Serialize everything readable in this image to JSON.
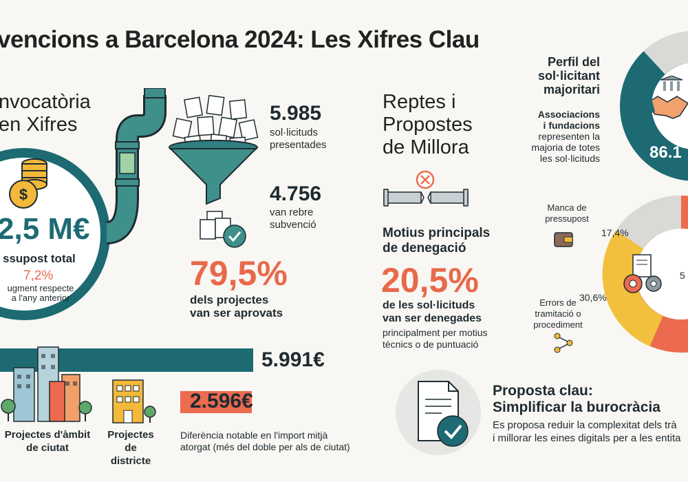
{
  "title": "vencions a Barcelona 2024: Les Xifres Clau",
  "convocatoria": {
    "heading_line1": "nvocatòria",
    "heading_line2": "en Xifres",
    "budget": "2,5 M€",
    "budget_label": "ssupost total",
    "increase_pct": "7,2%",
    "increase_label_line1": "ugment respecte",
    "increase_label_line2": "a l'any anterior"
  },
  "funnel": {
    "submitted_value": "5.985",
    "submitted_label_line1": "sol·licituds",
    "submitted_label_line2": "presentades",
    "granted_value": "4.756",
    "granted_label_line1": "van rebre",
    "granted_label_line2": "subvenció",
    "approved_pct": "79,5%",
    "approved_label_line1": "dels projectes",
    "approved_label_line2": "van ser aprovats"
  },
  "amounts": {
    "city_value": "5.991€",
    "district_value": "2.596€",
    "city_label_line1": "Projectes d'àmbit",
    "city_label_line2": "de ciutat",
    "district_label_line1": "Projectes",
    "district_label_line2": "de districte",
    "note_line1": "Diferència notable en l'import mitjà",
    "note_line2": "atorgat (més del doble per als de ciutat)",
    "city_bar_color": "#1d6a73",
    "district_bar_color": "#ec6b4e"
  },
  "reptes": {
    "heading_line1": "Reptes i",
    "heading_line2": "Propostes",
    "heading_line3": "de Millora",
    "reasons_line1": "Motius principals",
    "reasons_line2": "de denegació",
    "denied_pct": "20,5%",
    "denied_label_line1": "de les sol·licituds",
    "denied_label_line2": "van ser denegades",
    "denied_note_line1": "principalment per motius",
    "denied_note_line2": "tècnics o de puntuació"
  },
  "perfil": {
    "heading_line1": "Perfil del",
    "heading_line2": "sol·licitant",
    "heading_line3": "majoritari",
    "desc_line1": "Associacions",
    "desc_line2": "i fundacions",
    "desc_line3": "representen la",
    "desc_line4": "majoria de totes",
    "desc_line5": "les sol·licituds",
    "pct": "86.1"
  },
  "denial_chart": {
    "lack_budget_line1": "Manca de",
    "lack_budget_line2": "pressupost",
    "lack_budget_pct": "17,4%",
    "errors_line1": "Errors de",
    "errors_line2": "tramitació o",
    "errors_line3": "procediment",
    "errors_pct": "30,6%",
    "right_fragment": "5",
    "colors": {
      "lack": "#d9d9d6",
      "errors": "#f2c03c",
      "other": "#ec6b4e"
    }
  },
  "proposta": {
    "heading_line1": "Proposta clau:",
    "heading_line2": "Simplificar la burocràcia",
    "desc_line1": "Es proposa reduir la complexitat dels trà",
    "desc_line2": "i millorar les eines digitals per a les entita"
  },
  "icons": [
    "coins-icon",
    "pipe-icon",
    "documents-icon",
    "funnel-icon",
    "approved-docs-icon",
    "broken-pipe-icon",
    "close-icon",
    "buildings-icon",
    "district-building-icon",
    "handshake-icon",
    "bank-icon",
    "wallet-icon",
    "gears-icon",
    "workflow-icon",
    "document-check-icon"
  ]
}
